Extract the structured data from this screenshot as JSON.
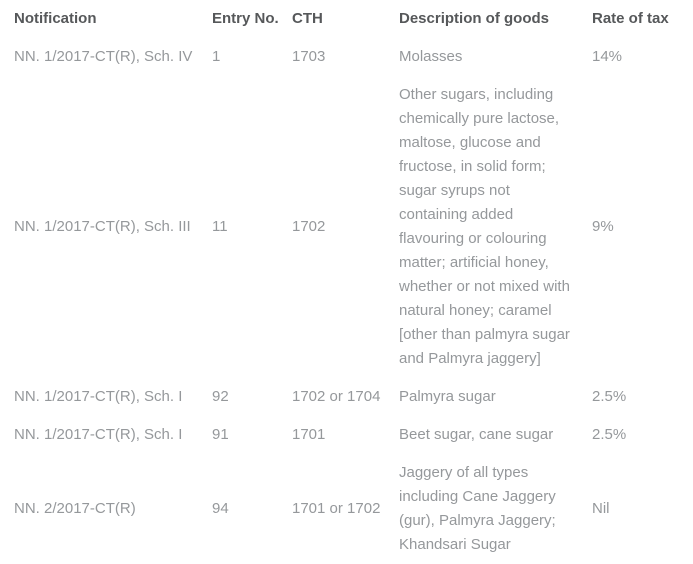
{
  "table": {
    "columns": [
      {
        "key": "notification",
        "label": "Notification"
      },
      {
        "key": "entry_no",
        "label": "Entry No."
      },
      {
        "key": "cth",
        "label": "CTH"
      },
      {
        "key": "description",
        "label": "Description of goods"
      },
      {
        "key": "rate",
        "label": "Rate of tax"
      }
    ],
    "rows": [
      {
        "notification": "NN. 1/2017-CT(R), Sch. IV",
        "entry_no": "1",
        "cth": "1703",
        "description": "Molasses",
        "rate": "14%"
      },
      {
        "notification": "NN. 1/2017-CT(R), Sch. III",
        "entry_no": "11",
        "cth": "1702",
        "description": "Other sugars, including chemically pure lactose, maltose, glucose and fructose, in solid form; sugar syrups not containing added flavouring or colouring matter; artificial honey, whether or not mixed with natural honey; caramel [other than palmyra sugar and Palmyra jaggery]",
        "rate": "9%"
      },
      {
        "notification": "NN. 1/2017-CT(R), Sch. I",
        "entry_no": "92",
        "cth": "1702 or 1704",
        "description": "Palmyra sugar",
        "rate": "2.5%"
      },
      {
        "notification": "NN. 1/2017-CT(R), Sch. I",
        "entry_no": "91",
        "cth": "1701",
        "description": "Beet sugar, cane sugar",
        "rate": "2.5%"
      },
      {
        "notification": "NN. 2/2017-CT(R)",
        "entry_no": "94",
        "cth": "1701 or 1702",
        "description": "Jaggery of all types including Cane Jaggery (gur), Palmyra Jaggery; Khandsari Sugar",
        "rate": "Nil"
      }
    ]
  },
  "colors": {
    "header_text": "#56585a",
    "body_text": "#95989b",
    "background": "#ffffff"
  }
}
